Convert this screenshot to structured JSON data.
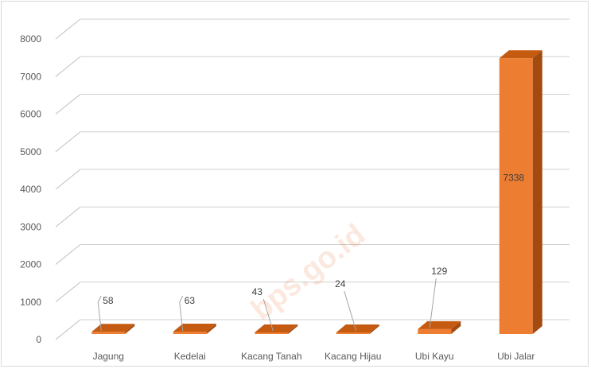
{
  "chart_data": {
    "type": "bar",
    "style": "3d-column",
    "categories": [
      "Jagung",
      "Kedelai",
      "Kacang Tanah",
      "Kacang Hijau",
      "Ubi Kayu",
      "Ubi Jalar"
    ],
    "values": [
      58,
      63,
      43,
      24,
      129,
      7338
    ],
    "title": "",
    "xlabel": "",
    "ylabel": "",
    "ylim": [
      0,
      8000
    ],
    "yticks": [
      0,
      1000,
      2000,
      3000,
      4000,
      5000,
      6000,
      7000,
      8000
    ],
    "grid": true,
    "legend": "none",
    "bar_color": "#ed7d31",
    "bar_top_color": "#c55a11",
    "bar_side_color": "#a34a10"
  },
  "watermark": "bps.go.id"
}
